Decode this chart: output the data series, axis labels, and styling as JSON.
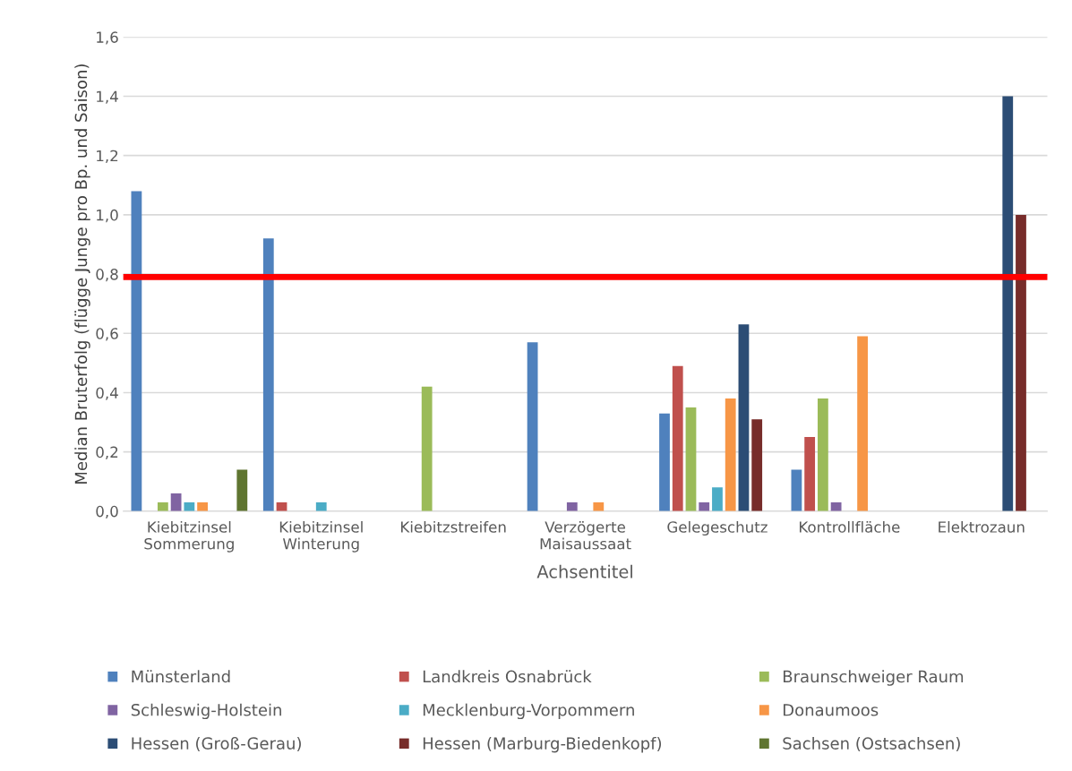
{
  "chart_data": {
    "type": "bar",
    "categories": [
      "Kiebitzinsel\nSommerung",
      "Kiebitzinsel\nWinterung",
      "Kiebitzstreifen",
      "Verzögerte\nMaisaussaat",
      "Gelegeschutz",
      "Kontrollfläche",
      "Elektrozaun"
    ],
    "series": [
      {
        "name": "Münsterland",
        "color": "#4f81bd",
        "values": [
          1.08,
          0.92,
          null,
          0.57,
          0.33,
          0.14,
          null
        ]
      },
      {
        "name": "Landkreis Osnabrück",
        "color": "#c0504d",
        "values": [
          null,
          0.03,
          null,
          null,
          0.49,
          0.25,
          null
        ]
      },
      {
        "name": "Braunschweiger Raum",
        "color": "#9bbb59",
        "values": [
          0.03,
          null,
          0.42,
          null,
          0.35,
          0.38,
          null
        ]
      },
      {
        "name": "Schleswig-Holstein",
        "color": "#8064a2",
        "values": [
          0.06,
          null,
          null,
          0.03,
          0.03,
          0.03,
          null
        ]
      },
      {
        "name": "Mecklenburg-Vorpommern",
        "color": "#4bacc6",
        "values": [
          0.03,
          0.03,
          null,
          null,
          0.08,
          null,
          null
        ]
      },
      {
        "name": "Donaumoos",
        "color": "#f79646",
        "values": [
          0.03,
          null,
          null,
          0.03,
          0.38,
          0.59,
          null
        ]
      },
      {
        "name": "Hessen (Groß-Gerau)",
        "color": "#2c4d75",
        "values": [
          null,
          null,
          null,
          null,
          0.63,
          null,
          1.4
        ]
      },
      {
        "name": "Hessen (Marburg-Biedenkopf)",
        "color": "#772c2a",
        "values": [
          null,
          null,
          null,
          null,
          0.31,
          null,
          1.0
        ]
      },
      {
        "name": "Sachsen (Ostsachsen)",
        "color": "#5f7530",
        "values": [
          0.14,
          null,
          null,
          null,
          null,
          null,
          null
        ]
      }
    ],
    "ylabel": "Median Bruterfolg (flügge Junge pro Bp. und Saison)",
    "xlabel": "Achsentitel",
    "ylim": [
      0,
      1.6
    ],
    "yticks": [
      {
        "value": 0,
        "label": "0,0"
      },
      {
        "value": 0.2,
        "label": "0,2"
      },
      {
        "value": 0.4,
        "label": "0,4"
      },
      {
        "value": 0.6,
        "label": "0,6"
      },
      {
        "value": 0.8,
        "label": "0,8"
      },
      {
        "value": 1.0,
        "label": "1,0"
      },
      {
        "value": 1.2,
        "label": "1,2"
      },
      {
        "value": 1.4,
        "label": "1,4"
      },
      {
        "value": 1.6,
        "label": "1,6"
      }
    ],
    "ref_lines": [
      {
        "axis": "y",
        "value": 0.79,
        "color": "#ff0000"
      }
    ],
    "grid": "y",
    "legend": "bottom"
  }
}
